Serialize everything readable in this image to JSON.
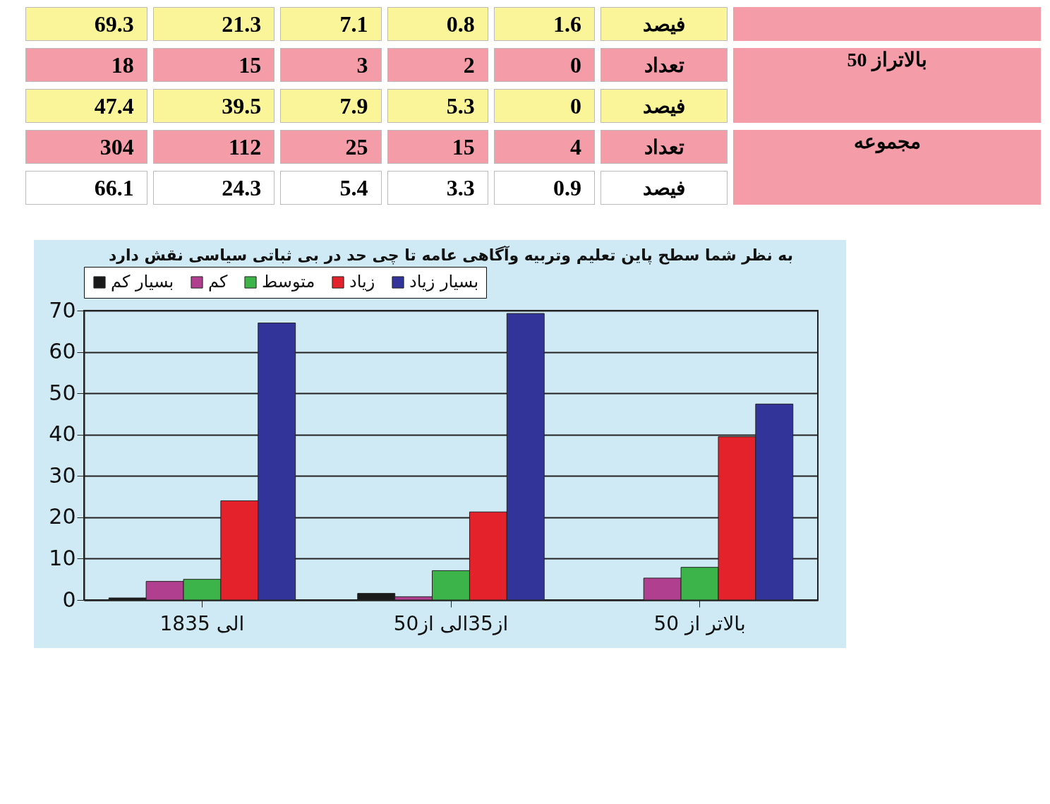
{
  "chart_data": [
    {
      "type": "other",
      "annotations": [
        "69.3",
        "21.3",
        "7.1",
        "0.8",
        "1.6",
        "فیصد",
        "18",
        "15",
        "3",
        "2",
        "0",
        "تعداد",
        "بالاتراز 50",
        "47.4",
        "39.5",
        "7.9",
        "5.3",
        "0",
        "فیصد",
        "304",
        "112",
        "25",
        "15",
        "4",
        "تعداد",
        "مجموعه",
        "66.1",
        "24.3",
        "5.4",
        "3.3",
        "0.9",
        "فیصد"
      ]
    },
    {
      "type": "bar",
      "title": "به نظر شما سطح پاین تعلیم وتربیه وآگاهی عامه تا چی حد در بی ثباتی سیاسی نقش دارد",
      "categories": [
        "18الی 35",
        "از35الی از50",
        "بالاتر از 50"
      ],
      "series": [
        {
          "name": "بسیار کم",
          "color": "#1a1a1a",
          "values": [
            0.5,
            1.6,
            0
          ]
        },
        {
          "name": "کم",
          "color": "#b0408f",
          "values": [
            4.5,
            0.8,
            5.3
          ]
        },
        {
          "name": "متوسط",
          "color": "#3cb44a",
          "values": [
            5,
            7.1,
            7.9
          ]
        },
        {
          "name": "زیاد",
          "color": "#e3222b",
          "values": [
            24,
            21.3,
            39.5
          ]
        },
        {
          "name": "بسیار زیاد",
          "color": "#33349a",
          "values": [
            67,
            69.3,
            47.4
          ]
        }
      ],
      "ylim": [
        0,
        70
      ],
      "yticks": [
        0,
        10,
        20,
        30,
        40,
        50,
        60,
        70
      ],
      "grid": "y",
      "legend": "top"
    }
  ]
}
